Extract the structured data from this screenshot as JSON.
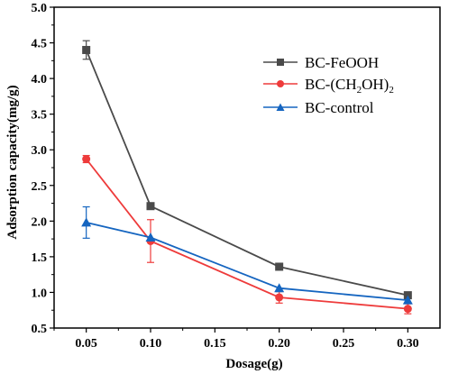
{
  "chart_data": {
    "type": "line",
    "xlabel": "Dosage(g)",
    "ylabel": "Adsorption capacity(mg/g)",
    "xlim": [
      0.025,
      0.325
    ],
    "ylim": [
      0.5,
      5.0
    ],
    "x_ticks": [
      "0.05",
      "0.10",
      "0.15",
      "0.20",
      "0.25",
      "0.30"
    ],
    "y_ticks": [
      "0.5",
      "1.0",
      "1.5",
      "2.0",
      "2.5",
      "3.0",
      "3.5",
      "4.0",
      "4.5",
      "5.0"
    ],
    "legend_position": "top-right",
    "grid": false,
    "series": [
      {
        "name": "BC-FeOOH",
        "color": "#4a4a4a",
        "marker": "square",
        "x": [
          0.05,
          0.1,
          0.2,
          0.3
        ],
        "y": [
          4.4,
          2.21,
          1.36,
          0.96
        ],
        "err": [
          0.13,
          0.0,
          0.0,
          0.0
        ]
      },
      {
        "name": "BC-(CH2OH)2",
        "name_base": "BC-(CH",
        "name_sub1": "2",
        "name_mid": "OH)",
        "name_sub2": "2",
        "color": "#ee3b3b",
        "marker": "circle",
        "x": [
          0.05,
          0.1,
          0.2,
          0.3
        ],
        "y": [
          2.87,
          1.72,
          0.93,
          0.77
        ],
        "err": [
          0.05,
          0.3,
          0.08,
          0.07
        ]
      },
      {
        "name": "BC-control",
        "color": "#1565c0",
        "marker": "triangle",
        "x": [
          0.05,
          0.1,
          0.2,
          0.3
        ],
        "y": [
          1.98,
          1.77,
          1.06,
          0.89
        ],
        "err": [
          0.22,
          0.0,
          0.0,
          0.0
        ]
      }
    ]
  }
}
